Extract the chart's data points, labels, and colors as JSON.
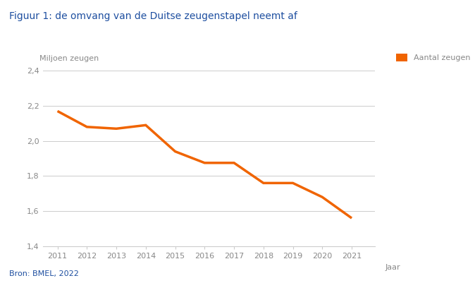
{
  "title": "Figuur 1: de omvang van de Duitse zeugenstapel neemt af",
  "ylabel": "Miljoen zeugen",
  "xlabel": "Jaar",
  "legend_label": "Aantal zeugen",
  "source": "Bron: BMEL, 2022",
  "years": [
    2011,
    2012,
    2013,
    2014,
    2015,
    2016,
    2017,
    2018,
    2019,
    2020,
    2021
  ],
  "values": [
    2.17,
    2.08,
    2.07,
    2.09,
    1.94,
    1.875,
    1.875,
    1.76,
    1.76,
    1.68,
    1.56
  ],
  "line_color": "#f06400",
  "legend_color": "#f06400",
  "ylim": [
    1.4,
    2.4
  ],
  "yticks": [
    1.4,
    1.6,
    1.8,
    2.0,
    2.2,
    2.4
  ],
  "ytick_labels": [
    "1,4",
    "1,6",
    "1,8",
    "2,0",
    "2,2",
    "2,4"
  ],
  "background_color": "#ffffff",
  "grid_color": "#cccccc",
  "title_color": "#1e4fa0",
  "title_fontsize": 10,
  "axis_fontsize": 8,
  "source_fontsize": 8,
  "source_color": "#1e4fa0",
  "line_width": 2.5
}
